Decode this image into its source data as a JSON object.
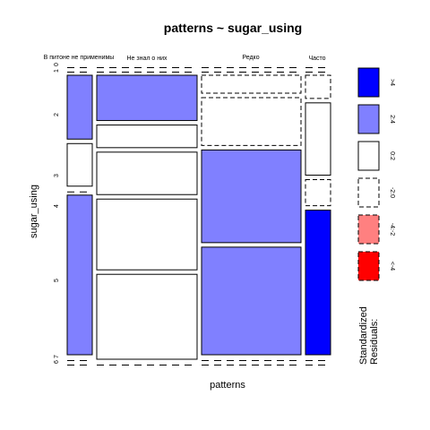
{
  "chart_data": {
    "type": "mosaic",
    "title": "patterns ~ sugar_using",
    "xlabel": "patterns",
    "ylabel": "sugar_using",
    "columns": [
      "В питоне не применимы",
      "Не знал о них",
      "Редко",
      "Часто"
    ],
    "rows": [
      "0",
      "1",
      "2",
      "3",
      "4",
      "5",
      "6",
      "7"
    ],
    "row_tick_labels": [
      "1",
      "0",
      "2",
      "3",
      "4",
      "5",
      "7",
      "6"
    ],
    "column_shares": [
      0.078,
      0.312,
      0.312,
      0.082
    ],
    "cells": [
      {
        "column": "В питоне не применимы",
        "row": "0",
        "share": 0,
        "residual_band": "0:2",
        "line": "solid"
      },
      {
        "column": "В питоне не применимы",
        "row": "1",
        "share": 0,
        "residual_band": "0:2",
        "line": "solid"
      },
      {
        "column": "В питоне не применимы",
        "row": "2",
        "share": 0.24,
        "residual_band": "2:4",
        "line": "solid"
      },
      {
        "column": "В питоне не применимы",
        "row": "3",
        "share": 0.16,
        "residual_band": "0:2",
        "line": "solid"
      },
      {
        "column": "В питоне не применимы",
        "row": "4",
        "share": 0,
        "residual_band": "0:2",
        "line": "solid"
      },
      {
        "column": "В питоне не применимы",
        "row": "5",
        "share": 0.6,
        "residual_band": "2:4",
        "line": "solid"
      },
      {
        "column": "В питоне не применимы",
        "row": "6",
        "share": 0,
        "residual_band": "0:2",
        "line": "solid"
      },
      {
        "column": "В питоне не применимы",
        "row": "7",
        "share": 0,
        "residual_band": "0:2",
        "line": "solid"
      },
      {
        "column": "Не знал о них",
        "row": "0",
        "share": 0,
        "residual_band": "0:2",
        "line": "solid"
      },
      {
        "column": "Не знал о них",
        "row": "1",
        "share": 0,
        "residual_band": "0:2",
        "line": "solid"
      },
      {
        "column": "Не знал о них",
        "row": "2",
        "share": 0.16,
        "residual_band": "2:4",
        "line": "solid"
      },
      {
        "column": "Не знал о них",
        "row": "3",
        "share": 0.08,
        "residual_band": "0:2",
        "line": "solid"
      },
      {
        "column": "Не знал о них",
        "row": "4",
        "share": 0.15,
        "residual_band": "0:2",
        "line": "solid"
      },
      {
        "column": "Не знал о них",
        "row": "5",
        "share": 0.25,
        "residual_band": "0:2",
        "line": "solid"
      },
      {
        "column": "Не знал о них",
        "row": "6",
        "share": 0.3,
        "residual_band": "0:2",
        "line": "solid"
      },
      {
        "column": "Не знал о них",
        "row": "7",
        "share": 0,
        "residual_band": "0:2",
        "line": "solid"
      },
      {
        "column": "Редко",
        "row": "0",
        "share": 0,
        "residual_band": "0:2",
        "line": "solid"
      },
      {
        "column": "Редко",
        "row": "1",
        "share": 0,
        "residual_band": "0:2",
        "line": "solid"
      },
      {
        "column": "Редко",
        "row": "2",
        "share": 0.06,
        "residual_band": "-2:0",
        "line": "dashed"
      },
      {
        "column": "Редко",
        "row": "3",
        "share": 0.16,
        "residual_band": "-2:0",
        "line": "dashed"
      },
      {
        "column": "Редко",
        "row": "4",
        "share": 0.31,
        "residual_band": "2:4",
        "line": "solid"
      },
      {
        "column": "Редко",
        "row": "5",
        "share": 0.36,
        "residual_band": "2:4",
        "line": "solid"
      },
      {
        "column": "Редко",
        "row": "6",
        "share": 0,
        "residual_band": "0:2",
        "line": "solid"
      },
      {
        "column": "Редко",
        "row": "7",
        "share": 0,
        "residual_band": "0:2",
        "line": "solid"
      },
      {
        "column": "Часто",
        "row": "0",
        "share": 0,
        "residual_band": "0:2",
        "line": "solid"
      },
      {
        "column": "Часто",
        "row": "1",
        "share": 0,
        "residual_band": "0:2",
        "line": "solid"
      },
      {
        "column": "Часто",
        "row": "2",
        "share": 0.08,
        "residual_band": "-2:0",
        "line": "dashed"
      },
      {
        "column": "Часто",
        "row": "3",
        "share": 0.25,
        "residual_band": "0:2",
        "line": "solid"
      },
      {
        "column": "Часто",
        "row": "4",
        "share": 0.09,
        "residual_band": "-2:0",
        "line": "dashed"
      },
      {
        "column": "Часто",
        "row": "5",
        "share": 0.5,
        "residual_band": ">4",
        "line": "solid"
      },
      {
        "column": "Часто",
        "row": "6",
        "share": 0,
        "residual_band": "0:2",
        "line": "solid"
      },
      {
        "column": "Часто",
        "row": "7",
        "share": 0,
        "residual_band": "0:2",
        "line": "solid"
      }
    ],
    "legend": {
      "title_lines": [
        "Standardized",
        "Residuals:"
      ],
      "placement": "right",
      "entries": [
        {
          "label": ">4",
          "fill": "#0000ff",
          "line": "solid"
        },
        {
          "label": "2:4",
          "fill": "#8080ff",
          "line": "solid"
        },
        {
          "label": "0:2",
          "fill": "#ffffff",
          "line": "solid"
        },
        {
          "label": "-2:0",
          "fill": "#ffffff",
          "line": "dashed"
        },
        {
          "label": "-4:-2",
          "fill": "#ff8080",
          "line": "dashed"
        },
        {
          "label": "<-4",
          "fill": "#ff0000",
          "line": "dashed"
        }
      ]
    }
  }
}
